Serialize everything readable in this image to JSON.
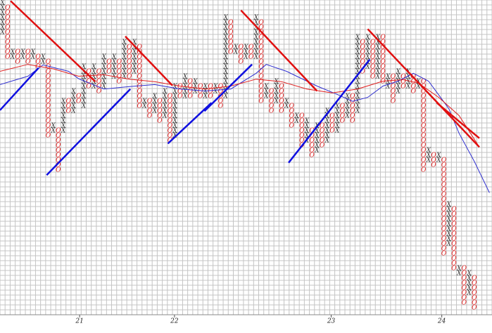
{
  "chart_data": {
    "type": "point_and_figure",
    "symbols": {
      "x": "X",
      "o": "O"
    },
    "symbol_colors": {
      "x": "#333333",
      "o": "#e02020"
    },
    "xlim": [
      -0.5,
      96.5
    ],
    "ylim": [
      -0.5,
      63.5
    ],
    "xticks": [
      {
        "value": 15.2,
        "label": "21"
      },
      {
        "value": 33.9,
        "label": "22"
      },
      {
        "value": 64.8,
        "label": "23"
      },
      {
        "value": 86.6,
        "label": "24"
      }
    ],
    "grid": true,
    "columns": {
      "kind": [
        "x",
        "o",
        "x",
        "o",
        "x",
        "o",
        "x",
        "o",
        "x",
        "o",
        "x",
        "o",
        "x",
        "o",
        "x",
        "o",
        "x",
        "o",
        "x",
        "o",
        "x",
        "o",
        "x",
        "o",
        "x",
        "o",
        "x",
        "o",
        "x",
        "o",
        "x",
        "o",
        "x",
        "o",
        "x",
        "o",
        "x",
        "o",
        "x",
        "o",
        "x",
        "o",
        "x",
        "o",
        "x",
        "o",
        "x",
        "o",
        "x",
        "o",
        "x",
        "o",
        "x",
        "o",
        "x",
        "o",
        "x",
        "o",
        "x",
        "o",
        "x",
        "o",
        "x",
        "o",
        "x",
        "o",
        "x",
        "o",
        "x",
        "o",
        "x",
        "o",
        "x",
        "o",
        "x",
        "o",
        "x",
        "o",
        "x",
        "o",
        "x",
        "o",
        "x",
        "o",
        "x",
        "o",
        "x",
        "o",
        "x",
        "o",
        "x",
        "o",
        "x",
        "o"
      ],
      "low": [
        57,
        52,
        52,
        51,
        52,
        51,
        52,
        50,
        51,
        36,
        37,
        29,
        37,
        41,
        41,
        43,
        42,
        46,
        46,
        45,
        46,
        49,
        48,
        47,
        48,
        48,
        49,
        42,
        42,
        40,
        41,
        39,
        40,
        35,
        36,
        44,
        44,
        44,
        45,
        44,
        44,
        44,
        45,
        42,
        44,
        53,
        53,
        51,
        52,
        52,
        52,
        43,
        44,
        41,
        43,
        41,
        42,
        38,
        39,
        34,
        35,
        32,
        33,
        34,
        35,
        37,
        37,
        39,
        40,
        39,
        41,
        49,
        50,
        48,
        48,
        47,
        46,
        43,
        45,
        46,
        46,
        45,
        46,
        29,
        31,
        30,
        31,
        12,
        14,
        9,
        8,
        2,
        4,
        1
      ],
      "high": [
        63,
        62,
        53,
        53,
        53,
        53,
        53,
        52,
        52,
        51,
        38,
        37,
        43,
        43,
        45,
        44,
        50,
        49,
        50,
        49,
        52,
        51,
        52,
        51,
        55,
        54,
        55,
        54,
        43,
        43,
        44,
        43,
        45,
        44,
        46,
        46,
        48,
        47,
        47,
        46,
        46,
        46,
        46,
        46,
        60,
        59,
        54,
        54,
        54,
        54,
        60,
        59,
        46,
        45,
        47,
        46,
        43,
        42,
        40,
        40,
        39,
        37,
        38,
        38,
        41,
        40,
        42,
        42,
        44,
        44,
        56,
        55,
        56,
        55,
        56,
        56,
        48,
        48,
        49,
        48,
        49,
        48,
        47,
        47,
        33,
        32,
        32,
        31,
        22,
        21,
        9,
        9,
        8,
        7
      ]
    },
    "moving_averages": [
      {
        "color": "#3030d0",
        "x": [
          -0.5,
          5,
          8,
          13,
          15,
          20,
          25,
          30,
          35,
          40,
          45,
          50,
          52,
          56,
          62,
          66,
          69,
          72,
          75,
          78,
          81,
          84,
          88,
          90,
          93,
          96
        ],
        "values": [
          46.3,
          48,
          50.3,
          49,
          47.5,
          45.4,
          45.9,
          46.3,
          45.4,
          45,
          45.4,
          48.6,
          50.4,
          49,
          46,
          44.3,
          42.9,
          43.7,
          46,
          47,
          48.6,
          47,
          41.4,
          36.4,
          30.7,
          24.3
        ]
      },
      {
        "color": "#e02020",
        "x": [
          -0.5,
          5,
          10,
          15,
          20,
          25,
          30,
          35,
          40,
          45,
          50,
          55,
          60,
          65,
          70,
          75,
          79,
          82,
          86,
          90,
          94
        ],
        "values": [
          49,
          50.4,
          49.5,
          48,
          48.3,
          47.4,
          46.9,
          46,
          45.4,
          46,
          47.4,
          46.9,
          45.4,
          44.6,
          45.4,
          47,
          47.3,
          46.6,
          43.7,
          40,
          33.6
        ]
      }
    ],
    "trend_lines": [
      {
        "color": "#e01010",
        "x": [
          1.6,
          18.3
        ],
        "values": [
          63.3,
          46.9
        ]
      },
      {
        "color": "#e01010",
        "x": [
          24.2,
          33.5
        ],
        "values": [
          56.1,
          46.1
        ]
      },
      {
        "color": "#e01010",
        "x": [
          47,
          62
        ],
        "values": [
          61.4,
          45
        ]
      },
      {
        "color": "#e01010",
        "x": [
          72,
          94
        ],
        "values": [
          57.6,
          33.6
        ]
      },
      {
        "color": "#e01010",
        "x": [
          85.6,
          94
        ],
        "values": [
          42.6,
          35.4
        ]
      },
      {
        "color": "#1010e0",
        "x": [
          -0.5,
          7.1
        ],
        "values": [
          41.1,
          49.7
        ]
      },
      {
        "color": "#1010e0",
        "x": [
          8.7,
          25.2
        ],
        "values": [
          27.9,
          45.4
        ]
      },
      {
        "color": "#1010e0",
        "x": [
          32.6,
          41.2
        ],
        "values": [
          34.3,
          42.6
        ]
      },
      {
        "color": "#1010e0",
        "x": [
          39.8,
          49.2
        ],
        "values": [
          40.9,
          50.4
        ]
      },
      {
        "color": "#1010e0",
        "x": [
          56.4,
          72.4
        ],
        "values": [
          30.4,
          51.4
        ]
      }
    ]
  }
}
